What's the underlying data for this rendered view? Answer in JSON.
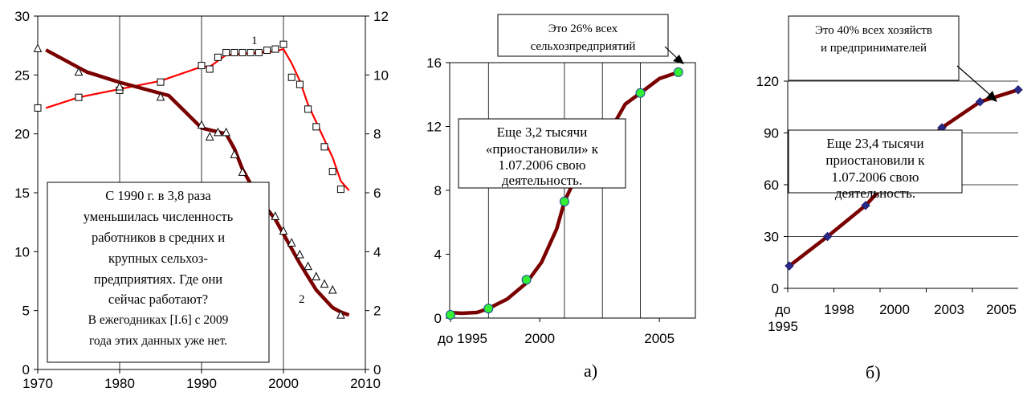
{
  "chart_data": [
    {
      "type": "line",
      "xlim": [
        1970,
        2010
      ],
      "xticks": [
        "1970",
        "1980",
        "1990",
        "2000",
        "2010"
      ],
      "ylim_left": [
        0,
        30
      ],
      "yticks_left": [
        "0",
        "5",
        "10",
        "15",
        "20",
        "25",
        "30"
      ],
      "ylim_right": [
        0,
        12
      ],
      "yticks_right": [
        "0",
        "2",
        "4",
        "6",
        "8",
        "10",
        "12"
      ],
      "grid": "vertical",
      "series": [
        {
          "name": "1",
          "axis": "left",
          "color": "#ff0000",
          "points": [
            [
              1970,
              22.2
            ],
            [
              1975,
              23.1
            ],
            [
              1980,
              23.7
            ],
            [
              1985,
              24.4
            ],
            [
              1990,
              25.8
            ],
            [
              1991,
              25.5
            ],
            [
              1992,
              26.5
            ],
            [
              1993,
              26.9
            ],
            [
              1994,
              26.9
            ],
            [
              1995,
              26.9
            ],
            [
              1996,
              26.9
            ],
            [
              1997,
              26.9
            ],
            [
              1998,
              27.1
            ],
            [
              1999,
              27.2
            ],
            [
              2000,
              27.6
            ],
            [
              2001,
              24.8
            ],
            [
              2002,
              24.2
            ],
            [
              2003,
              22.1
            ],
            [
              2004,
              20.6
            ],
            [
              2005,
              18.9
            ],
            [
              2006,
              16.8
            ],
            [
              2007,
              15.3
            ]
          ],
          "curve": [
            [
              1971,
              22.2
            ],
            [
              1975,
              23.1
            ],
            [
              1980,
              23.8
            ],
            [
              1985,
              24.5
            ],
            [
              1990,
              25.7
            ],
            [
              1991,
              25.7
            ],
            [
              1993,
              26.7
            ],
            [
              1999,
              27.0
            ],
            [
              2000,
              27.2
            ],
            [
              2001,
              26.0
            ],
            [
              2002,
              24.5
            ],
            [
              2003,
              22.5
            ],
            [
              2004,
              21.0
            ],
            [
              2005,
              19.5
            ],
            [
              2006,
              18.0
            ],
            [
              2007,
              16.0
            ],
            [
              2008,
              15.2
            ]
          ]
        },
        {
          "name": "2",
          "axis": "right",
          "color": "#7a0000",
          "points": [
            [
              1970,
              10.9
            ],
            [
              1975,
              10.1
            ],
            [
              1980,
              9.6
            ],
            [
              1985,
              9.25
            ],
            [
              1990,
              8.3
            ],
            [
              1991,
              7.9
            ],
            [
              1992,
              8.05
            ],
            [
              1993,
              8.05
            ],
            [
              1994,
              7.3
            ],
            [
              1995,
              6.7
            ],
            [
              1996,
              6.2
            ],
            [
              1997,
              5.75
            ],
            [
              1998,
              5.4
            ],
            [
              1999,
              5.2
            ],
            [
              2000,
              4.7
            ],
            [
              2001,
              4.3
            ],
            [
              2002,
              3.9
            ],
            [
              2003,
              3.5
            ],
            [
              2004,
              3.15
            ],
            [
              2005,
              2.9
            ],
            [
              2006,
              2.7
            ],
            [
              2007,
              1.85
            ]
          ],
          "curve": [
            [
              1971,
              10.85
            ],
            [
              1976,
              10.1
            ],
            [
              1980,
              9.75
            ],
            [
              1986,
              9.3
            ],
            [
              1990,
              8.2
            ],
            [
              1993,
              8.0
            ],
            [
              1994,
              7.5
            ],
            [
              1995,
              6.8
            ],
            [
              1997,
              5.8
            ],
            [
              1999,
              5.1
            ],
            [
              2000,
              4.6
            ],
            [
              2002,
              3.6
            ],
            [
              2004,
              2.7
            ],
            [
              2006,
              2.1
            ],
            [
              2007,
              1.95
            ],
            [
              2008,
              1.85
            ]
          ]
        }
      ],
      "labels": [
        "1",
        "2"
      ],
      "annotation": [
        "С 1990 г. в 3,8 раза",
        "уменьшилась численность",
        "работников в средних и",
        "крупных сельхоз-",
        "предприятиях. Где они",
        "сейчас работают?",
        "В ежегодниках [I.6] с 2009",
        "года этих данных уже нет."
      ]
    },
    {
      "type": "line",
      "ylim": [
        0,
        16
      ],
      "yticks": [
        "0",
        "4",
        "8",
        "12",
        "16"
      ],
      "xticks": [
        "до 1995",
        "2000",
        "2005"
      ],
      "grid": "vertical",
      "series": [
        {
          "color": "#7a0000",
          "marker_color": "#33ee33",
          "x": [
            0,
            1,
            2,
            3,
            4,
            5,
            6
          ],
          "points": [
            0.2,
            0.6,
            2.4,
            7.3,
            10.9,
            14.1,
            15.4
          ],
          "curve": [
            [
              -0.05,
              0.35
            ],
            [
              0.3,
              0.3
            ],
            [
              0.7,
              0.35
            ],
            [
              1,
              0.6
            ],
            [
              1.5,
              1.2
            ],
            [
              2,
              2.2
            ],
            [
              2.4,
              3.5
            ],
            [
              2.8,
              5.6
            ],
            [
              3,
              7.3
            ],
            [
              3.4,
              9.3
            ],
            [
              4,
              10.9
            ],
            [
              4.6,
              13.4
            ],
            [
              5,
              14.1
            ],
            [
              5.5,
              15.0
            ],
            [
              6,
              15.4
            ]
          ]
        }
      ],
      "callout": [
        "Это 26% всех",
        "сельхозпредприятий"
      ],
      "annotation": [
        "Еще 3,2 тысячи",
        "«приостановили» к",
        "1.07.2006  свою",
        "деятельность."
      ],
      "caption": "а)"
    },
    {
      "type": "line",
      "ylim": [
        0,
        120
      ],
      "yticks": [
        "0",
        "30",
        "60",
        "90",
        "120"
      ],
      "xticks": [
        [
          "до",
          "1995"
        ],
        [
          "1998"
        ],
        [
          "2000"
        ],
        [
          "2003"
        ],
        [
          "2005"
        ]
      ],
      "grid": "horizontal",
      "series": [
        {
          "color": "#7a0000",
          "marker_color": "#2a2a8a",
          "x": [
            0,
            1,
            2,
            3,
            4,
            5,
            6
          ],
          "points": [
            13,
            30,
            48,
            72,
            93,
            108,
            115
          ],
          "curve": [
            [
              0,
              13
            ],
            [
              1,
              30
            ],
            [
              2,
              48
            ],
            [
              3,
              72
            ],
            [
              4,
              93
            ],
            [
              5,
              108
            ],
            [
              6,
              115
            ]
          ]
        }
      ],
      "callout": [
        "Это 40% всех хозяйств",
        "и предпринимателей"
      ],
      "annotation": [
        "Еще 23,4 тысячи",
        "приостановили к",
        "1.07.2006  свою",
        "деятельность."
      ],
      "caption": "б)"
    }
  ]
}
